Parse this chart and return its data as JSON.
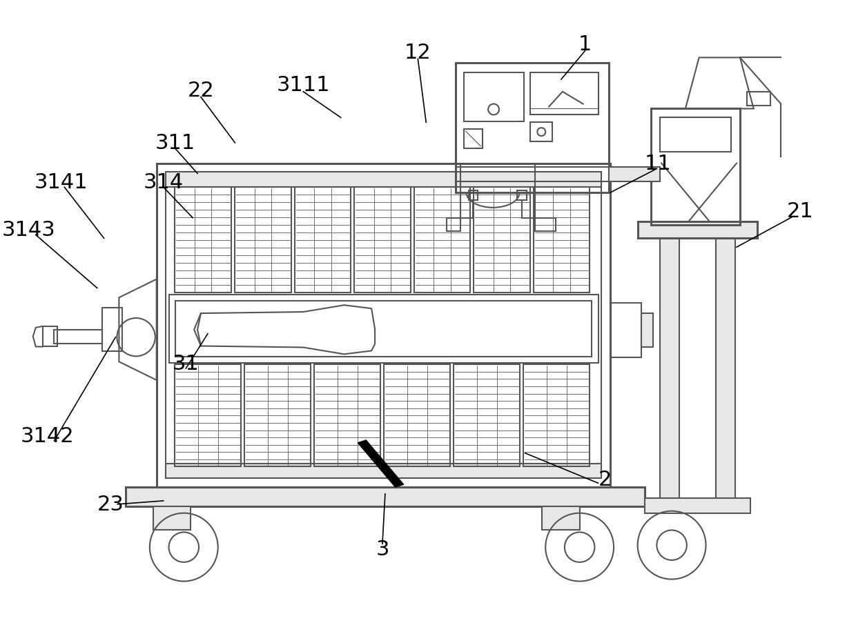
{
  "bg_color": "#ffffff",
  "line_color": "#555555",
  "lw": 1.5,
  "tlw": 2.2,
  "gray_fill": "#d0d0d0",
  "light_gray": "#e8e8e8"
}
